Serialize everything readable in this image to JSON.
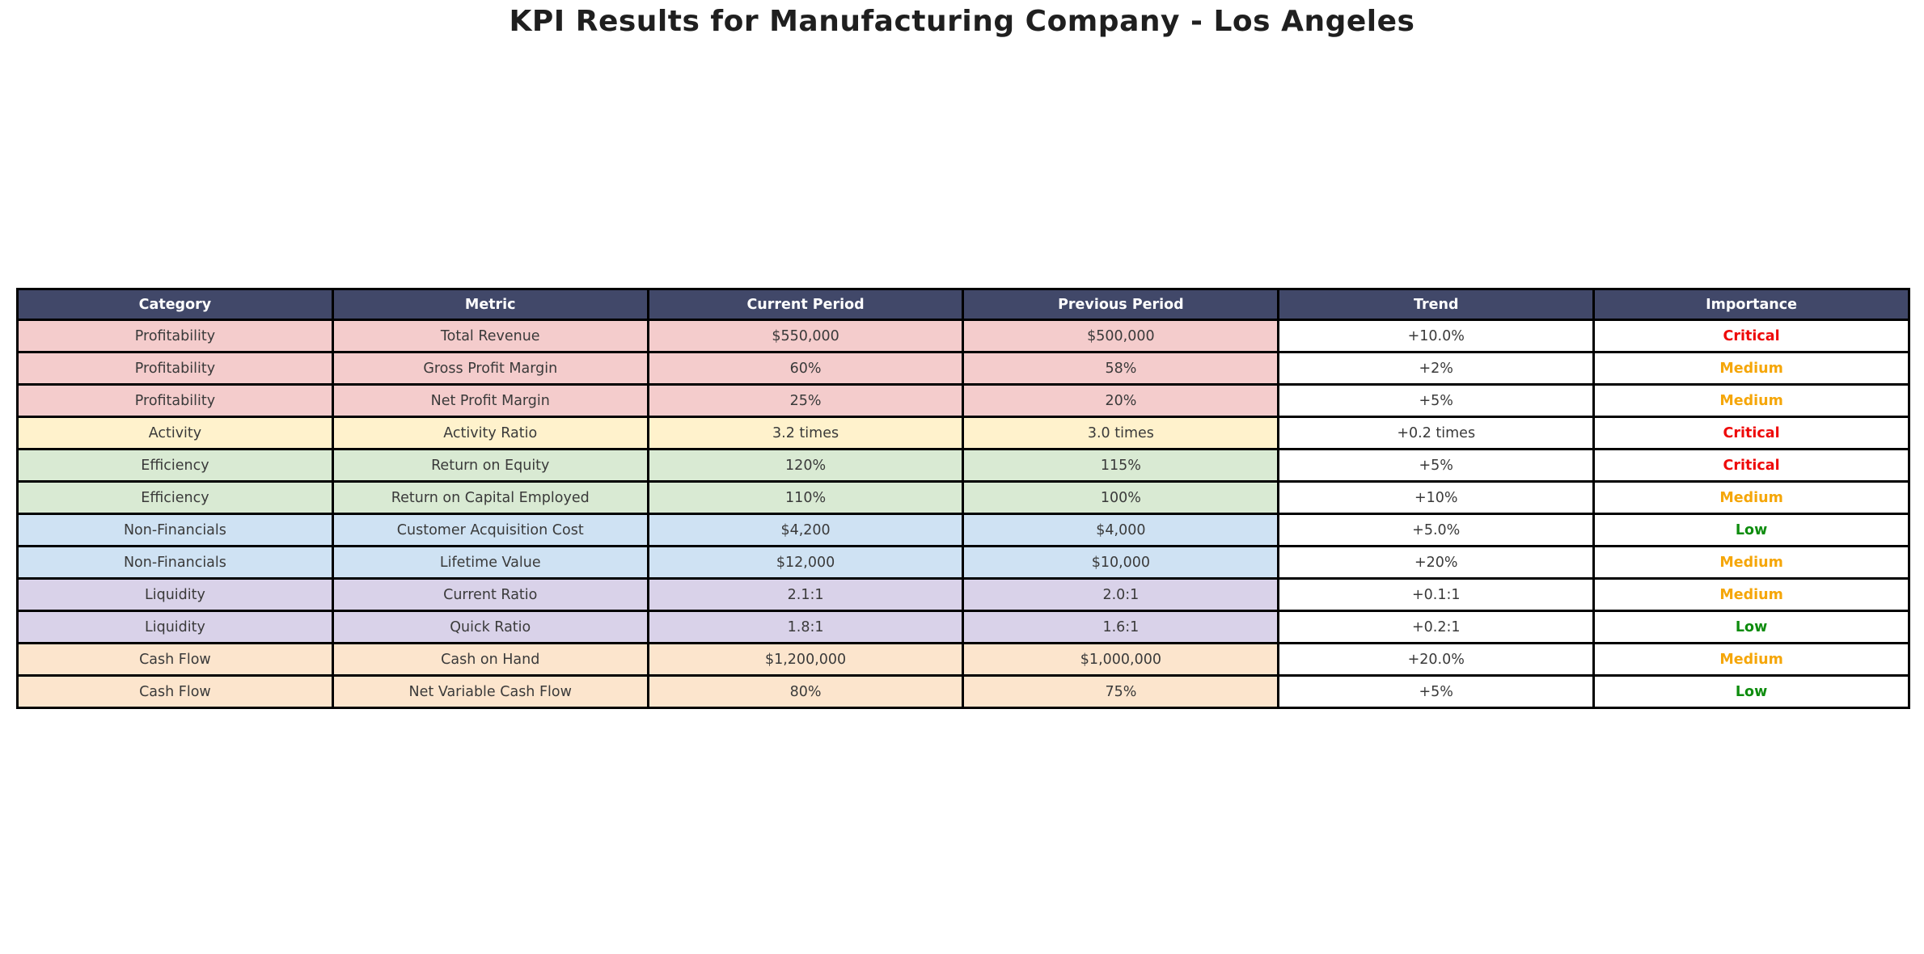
{
  "title": "KPI Results for Manufacturing Company - Los Angeles",
  "colors": {
    "page_bg": "#ffffff",
    "title_text": "#1f1f1f",
    "header_bg": "#414869",
    "header_text": "#ffffff",
    "border": "#000000",
    "cell_text": "#3a3a3a",
    "neutral_cell_bg": "#ffffff",
    "importance_critical": "#ee0a0a",
    "importance_medium": "#f5a609",
    "importance_low": "#0e8c0e",
    "category_profitability": "#f4cccc",
    "category_activity": "#fff2cc",
    "category_efficiency": "#d9ead3",
    "category_non_financials": "#cfe2f3",
    "category_liquidity": "#d9d2e9",
    "category_cash_flow": "#fce5cd"
  },
  "chart_data": {
    "type": "table",
    "title": "KPI Results for Manufacturing Company - Los Angeles",
    "columns": [
      "Category",
      "Metric",
      "Current Period",
      "Previous Period",
      "Trend",
      "Importance"
    ],
    "rows": [
      {
        "category": "Profitability",
        "metric": "Total Revenue",
        "current": "$550,000",
        "previous": "$500,000",
        "trend": "+10.0%",
        "importance": "Critical",
        "row_color": "#f4cccc",
        "importance_color": "#ee0a0a"
      },
      {
        "category": "Profitability",
        "metric": "Gross Profit Margin",
        "current": "60%",
        "previous": "58%",
        "trend": "+2%",
        "importance": "Medium",
        "row_color": "#f4cccc",
        "importance_color": "#f5a609"
      },
      {
        "category": "Profitability",
        "metric": "Net Profit Margin",
        "current": "25%",
        "previous": "20%",
        "trend": "+5%",
        "importance": "Medium",
        "row_color": "#f4cccc",
        "importance_color": "#f5a609"
      },
      {
        "category": "Activity",
        "metric": "Activity Ratio",
        "current": "3.2 times",
        "previous": "3.0 times",
        "trend": "+0.2 times",
        "importance": "Critical",
        "row_color": "#fff2cc",
        "importance_color": "#ee0a0a"
      },
      {
        "category": "Efficiency",
        "metric": "Return on Equity",
        "current": "120%",
        "previous": "115%",
        "trend": "+5%",
        "importance": "Critical",
        "row_color": "#d9ead3",
        "importance_color": "#ee0a0a"
      },
      {
        "category": "Efficiency",
        "metric": "Return on Capital Employed",
        "current": "110%",
        "previous": "100%",
        "trend": "+10%",
        "importance": "Medium",
        "row_color": "#d9ead3",
        "importance_color": "#f5a609"
      },
      {
        "category": "Non-Financials",
        "metric": "Customer Acquisition Cost",
        "current": "$4,200",
        "previous": "$4,000",
        "trend": "+5.0%",
        "importance": "Low",
        "row_color": "#cfe2f3",
        "importance_color": "#0e8c0e"
      },
      {
        "category": "Non-Financials",
        "metric": "Lifetime Value",
        "current": "$12,000",
        "previous": "$10,000",
        "trend": "+20%",
        "importance": "Medium",
        "row_color": "#cfe2f3",
        "importance_color": "#f5a609"
      },
      {
        "category": "Liquidity",
        "metric": "Current Ratio",
        "current": "2.1:1",
        "previous": "2.0:1",
        "trend": "+0.1:1",
        "importance": "Medium",
        "row_color": "#d9d2e9",
        "importance_color": "#f5a609"
      },
      {
        "category": "Liquidity",
        "metric": "Quick Ratio",
        "current": "1.8:1",
        "previous": "1.6:1",
        "trend": "+0.2:1",
        "importance": "Low",
        "row_color": "#d9d2e9",
        "importance_color": "#0e8c0e"
      },
      {
        "category": "Cash Flow",
        "metric": "Cash on Hand",
        "current": "$1,200,000",
        "previous": "$1,000,000",
        "trend": "+20.0%",
        "importance": "Medium",
        "row_color": "#fce5cd",
        "importance_color": "#f5a609"
      },
      {
        "category": "Cash Flow",
        "metric": "Net Variable Cash Flow",
        "current": "80%",
        "previous": "75%",
        "trend": "+5%",
        "importance": "Low",
        "row_color": "#fce5cd",
        "importance_color": "#0e8c0e"
      }
    ]
  }
}
